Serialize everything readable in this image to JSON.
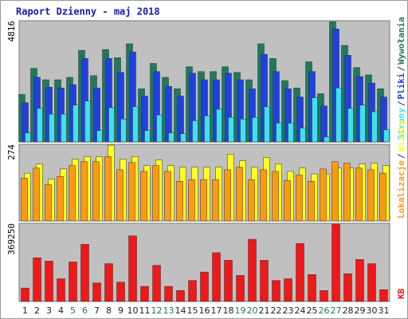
{
  "title": "Raport Dzienny -  maj 2018",
  "legend_separator": "/",
  "chart_data": [
    {
      "type": "bar",
      "ylim": [
        0,
        4816
      ],
      "yticks": [
        4816
      ],
      "series": [
        {
          "name": "Wywołania",
          "color": "#1f7a5c",
          "values": [
            1886,
            2925,
            2470,
            2470,
            2568,
            3640,
            2633,
            3673,
            3348,
            3900,
            2113,
            3120,
            2568,
            2113,
            2990,
            2795,
            2795,
            2990,
            2763,
            2470,
            3900,
            3315,
            2438,
            2145,
            3185,
            1918,
            4778,
            3835,
            2958,
            2665,
            2113
          ]
        },
        {
          "name": "Pliki",
          "color": "#2040e0",
          "values": [
            1560,
            2568,
            2178,
            2145,
            2275,
            3315,
            2145,
            3315,
            2763,
            3575,
            1820,
            2795,
            2210,
            1820,
            2730,
            2470,
            2470,
            2730,
            2470,
            2113,
            3478,
            2795,
            2113,
            1788,
            2795,
            1430,
            4485,
            3445,
            2600,
            2340,
            1788
          ]
        },
        {
          "name": "Strony",
          "color": "#40e0f0",
          "values": [
            358,
            1333,
            1105,
            1105,
            1463,
            1625,
            455,
            1365,
            910,
            1398,
            455,
            1073,
            358,
            325,
            845,
            1040,
            1300,
            975,
            910,
            975,
            1398,
            748,
            748,
            553,
            1755,
            195,
            2145,
            1333,
            1463,
            1203,
            488
          ]
        }
      ]
    },
    {
      "type": "bar",
      "ylim": [
        0,
        274
      ],
      "yticks": [
        274
      ],
      "series": [
        {
          "name": "Wizyty",
          "color": "#ffff20",
          "values": [
            171,
            204,
            150,
            186,
            221,
            230,
            230,
            271,
            221,
            230,
            198,
            218,
            198,
            192,
            192,
            192,
            192,
            239,
            215,
            192,
            227,
            204,
            177,
            189,
            168,
            168,
            189,
            189,
            204,
            207,
            198
          ]
        },
        {
          "name": "Lokalizacje",
          "color": "#ff9a10",
          "values": [
            153,
            189,
            130,
            159,
            198,
            212,
            212,
            230,
            183,
            209,
            177,
            198,
            177,
            142,
            148,
            148,
            148,
            183,
            192,
            148,
            183,
            177,
            145,
            165,
            142,
            186,
            212,
            207,
            189,
            183,
            171
          ]
        }
      ]
    },
    {
      "type": "bar",
      "ylim": [
        0,
        369250
      ],
      "yticks": [
        369250
      ],
      "categories": [
        "1",
        "2",
        "3",
        "4",
        "5",
        "6",
        "7",
        "8",
        "9",
        "10",
        "11",
        "12",
        "13",
        "14",
        "15",
        "16",
        "17",
        "18",
        "19",
        "20",
        "21",
        "22",
        "23",
        "24",
        "25",
        "26",
        "27",
        "28",
        "29",
        "30",
        "31"
      ],
      "category_colors": [
        "#222",
        "#222",
        "#222",
        "#222",
        "#1f7a5c",
        "#1f7a5c",
        "#222",
        "#222",
        "#222",
        "#222",
        "#222",
        "#1f7a5c",
        "#1f7a5c",
        "#222",
        "#222",
        "#222",
        "#222",
        "#222",
        "#1f7a5c",
        "#1f7a5c",
        "#222",
        "#222",
        "#222",
        "#222",
        "#222",
        "#1f7a5c",
        "#1f7a5c",
        "#222",
        "#222",
        "#222",
        "#222"
      ],
      "series": [
        {
          "name": "KB",
          "color": "#f01818",
          "values": [
            63520,
            206440,
            190560,
            107190,
            186590,
            269960,
            87340,
            178650,
            91310,
            309660,
            71460,
            170710,
            71460,
            51610,
            99250,
            138950,
            230260,
            194530,
            123070,
            293780,
            194530,
            99250,
            107190,
            273930,
            127040,
            51610,
            365240,
            131010,
            198500,
            178650,
            55580
          ]
        }
      ]
    }
  ]
}
